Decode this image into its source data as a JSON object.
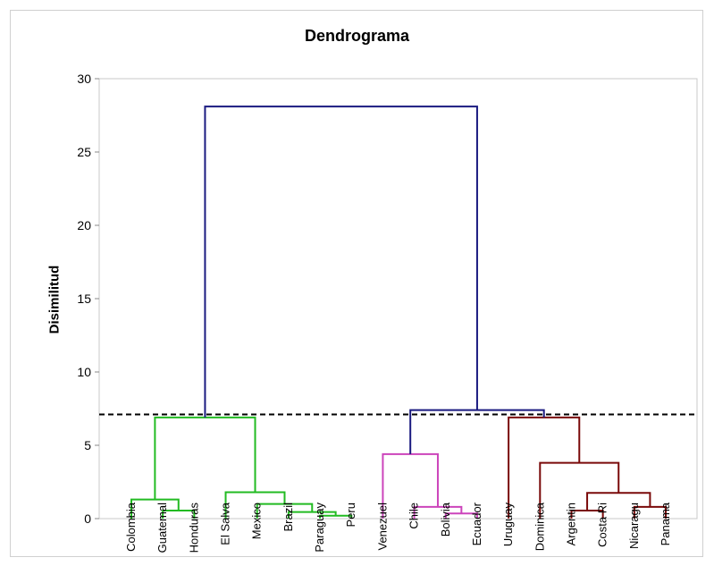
{
  "chart_data": {
    "type": "dendrogram",
    "title": "Dendrograma",
    "ylabel": "Disimilitud",
    "xlabel": "",
    "ylim": [
      0,
      30
    ],
    "yticks": [
      0,
      5,
      10,
      15,
      20,
      25,
      30
    ],
    "cut_line": 7.1,
    "grid": false,
    "leaves": [
      "Colombia",
      "Guatemal",
      "Honduras",
      "El Salva",
      "Mexico",
      "Brazil",
      "Paraguay",
      "Peru",
      "Venezuel",
      "Chile",
      "Bolivia",
      "Ecuador",
      "Uruguay",
      "Dominica",
      "Argentin",
      "Costa Ri",
      "Nicaragu",
      "Panama"
    ],
    "clusters": [
      {
        "color": "#22bb22",
        "leaf_range": [
          0,
          7
        ]
      },
      {
        "color": "#cc44bb",
        "leaf_range": [
          8,
          11
        ]
      },
      {
        "color": "#7a0a0a",
        "leaf_range": [
          12,
          17
        ]
      }
    ],
    "top_color": "#1a1a80",
    "merges": [
      {
        "a": "Guatemal",
        "b": "Honduras",
        "height": 0.55,
        "color": "#22bb22"
      },
      {
        "a": "Colombia",
        "b": 0,
        "height": 1.3,
        "color": "#22bb22"
      },
      {
        "a": "Paraguay",
        "b": "Peru",
        "height": 0.2,
        "color": "#22bb22"
      },
      {
        "a": "Brazil",
        "b": 2,
        "height": 0.45,
        "color": "#22bb22"
      },
      {
        "a": "Mexico",
        "b": 3,
        "height": 1.0,
        "color": "#22bb22"
      },
      {
        "a": "El Salva",
        "b": 4,
        "height": 1.8,
        "color": "#22bb22"
      },
      {
        "a": 1,
        "b": 5,
        "height": 6.9,
        "color": "#22bb22"
      },
      {
        "a": "Bolivia",
        "b": "Ecuador",
        "height": 0.35,
        "color": "#cc44bb"
      },
      {
        "a": "Chile",
        "b": 7,
        "height": 0.8,
        "color": "#cc44bb"
      },
      {
        "a": "Venezuel",
        "b": 8,
        "height": 4.4,
        "color": "#cc44bb"
      },
      {
        "a": "Argentin",
        "b": "Costa Ri",
        "height": 0.55,
        "color": "#7a0a0a"
      },
      {
        "a": "Nicaragu",
        "b": "Panama",
        "height": 0.8,
        "color": "#7a0a0a"
      },
      {
        "a": 10,
        "b": 11,
        "height": 1.75,
        "color": "#7a0a0a"
      },
      {
        "a": "Dominica",
        "b": 12,
        "height": 3.8,
        "color": "#7a0a0a"
      },
      {
        "a": "Uruguay",
        "b": 13,
        "height": 6.9,
        "color": "#7a0a0a"
      },
      {
        "a": 9,
        "b": 14,
        "height": 7.4,
        "color": "#1a1a80"
      },
      {
        "a": 6,
        "b": 15,
        "height": 28.1,
        "color": "#1a1a80"
      }
    ]
  }
}
